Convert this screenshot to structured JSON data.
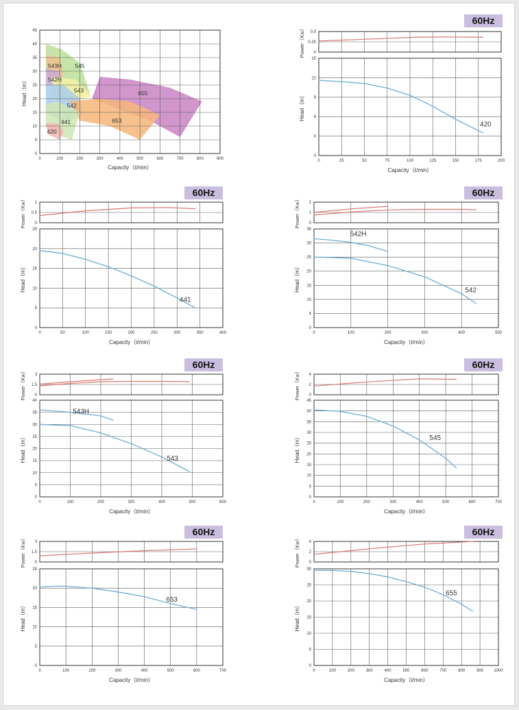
{
  "badges": {
    "b420": "60Hz",
    "b441": "60Hz",
    "b542": "60Hz",
    "b543": "60Hz",
    "b545": "60Hz",
    "b653": "60Hz",
    "b655": "60Hz"
  },
  "colors": {
    "head_curve": "#6aaed6",
    "power_curve": "#d9756e",
    "grid": "#5a5a5a",
    "badge_bg": "#c9bedf"
  },
  "chart_data": [
    {
      "type": "area",
      "id": "overview",
      "xlabel": "Capacity（ℓ/min）",
      "ylabel": "Head（m）",
      "xlim": [
        0,
        900
      ],
      "ylim": [
        0,
        45
      ],
      "xticks": [
        0,
        100,
        200,
        300,
        400,
        500,
        600,
        700,
        800,
        900
      ],
      "yticks": [
        0,
        5,
        10,
        15,
        20,
        25,
        30,
        35,
        40,
        45
      ],
      "grid": true,
      "regions": [
        {
          "name": "545",
          "color": "#bde09a",
          "points": [
            [
              30,
              40
            ],
            [
              110,
              38
            ],
            [
              200,
              33
            ],
            [
              250,
              22
            ],
            [
              160,
              20
            ],
            [
              80,
              25
            ],
            [
              30,
              30
            ]
          ]
        },
        {
          "name": "543H",
          "color": "#f3c193",
          "points": [
            [
              30,
              36
            ],
            [
              100,
              35
            ],
            [
              120,
              28
            ],
            [
              40,
              28
            ]
          ]
        },
        {
          "name": "542H",
          "color": "#c9a9d6",
          "points": [
            [
              30,
              31
            ],
            [
              100,
              30
            ],
            [
              110,
              25
            ],
            [
              30,
              25
            ]
          ]
        },
        {
          "name": "543",
          "color": "#f5f0a6",
          "points": [
            [
              60,
              28
            ],
            [
              180,
              27
            ],
            [
              260,
              21
            ],
            [
              150,
              18
            ],
            [
              70,
              22
            ]
          ]
        },
        {
          "name": "655",
          "color": "#c985c4",
          "points": [
            [
              300,
              28
            ],
            [
              450,
              27
            ],
            [
              650,
              24
            ],
            [
              810,
              19
            ],
            [
              700,
              6
            ],
            [
              550,
              12
            ],
            [
              400,
              16
            ],
            [
              260,
              20
            ]
          ]
        },
        {
          "name": "542",
          "color": "#a9cdea",
          "points": [
            [
              30,
              25
            ],
            [
              120,
              25
            ],
            [
              200,
              20
            ],
            [
              220,
              15
            ],
            [
              130,
              11
            ],
            [
              30,
              15
            ]
          ]
        },
        {
          "name": "653",
          "color": "#f6b679",
          "points": [
            [
              150,
              19
            ],
            [
              300,
              20
            ],
            [
              450,
              19
            ],
            [
              600,
              14
            ],
            [
              500,
              5
            ],
            [
              350,
              10
            ],
            [
              200,
              12
            ]
          ]
        },
        {
          "name": "441",
          "color": "#cfe6b4",
          "points": [
            [
              30,
              18
            ],
            [
              90,
              19
            ],
            [
              200,
              15
            ],
            [
              160,
              5
            ],
            [
              80,
              7
            ],
            [
              30,
              10
            ]
          ]
        },
        {
          "name": "420",
          "color": "#f0b5b5",
          "points": [
            [
              30,
              11
            ],
            [
              90,
              11
            ],
            [
              120,
              8
            ],
            [
              100,
              5
            ],
            [
              40,
              7
            ]
          ]
        }
      ],
      "region_labels": [
        {
          "text": "543H",
          "x": 75,
          "y": 32
        },
        {
          "text": "545",
          "x": 200,
          "y": 32
        },
        {
          "text": "542H",
          "x": 75,
          "y": 27
        },
        {
          "text": "543",
          "x": 195,
          "y": 23
        },
        {
          "text": "655",
          "x": 515,
          "y": 22
        },
        {
          "text": "542",
          "x": 160,
          "y": 17.5
        },
        {
          "text": "441",
          "x": 130,
          "y": 11.5
        },
        {
          "text": "653",
          "x": 385,
          "y": 12
        },
        {
          "text": "420",
          "x": 60,
          "y": 8
        }
      ]
    },
    {
      "type": "line",
      "id": "p420",
      "xlabel": "Capacity（ℓ/min）",
      "power": {
        "ylabel": "Power（Kw）",
        "ylim": [
          0,
          0.5
        ],
        "yticks": [
          0,
          0.25,
          0.5
        ],
        "ytick_labels": [
          "0",
          "0.25",
          "0.5"
        ],
        "series": [
          {
            "x": [
              0,
              60,
              105,
              140,
              180
            ],
            "y": [
              0.27,
              0.32,
              0.36,
              0.37,
              0.36
            ]
          }
        ]
      },
      "head": {
        "ylabel": "Head（m）",
        "ylim": [
          0,
          15
        ],
        "yticks": [
          0,
          3,
          6,
          9,
          12,
          15
        ],
        "xlim": [
          0,
          200
        ],
        "xticks": [
          0,
          25,
          50,
          75,
          100,
          125,
          150,
          175,
          200
        ],
        "series": [
          {
            "name": "420",
            "x": [
              0,
              25,
              50,
              75,
              100,
              125,
              150,
              180
            ],
            "y": [
              11.6,
              11.4,
              11.1,
              10.4,
              9.3,
              7.6,
              5.6,
              3.5
            ]
          }
        ],
        "labels": [
          {
            "text": "420",
            "x": 183,
            "y": 4.5
          }
        ]
      }
    },
    {
      "type": "line",
      "id": "p441",
      "xlabel": "Capacity（ℓ/min）",
      "power": {
        "ylabel": "Power（Kw）",
        "ylim": [
          0,
          1
        ],
        "yticks": [
          0,
          0.5,
          1
        ],
        "ytick_labels": [
          "0",
          "0.5",
          "1"
        ],
        "series": [
          {
            "x": [
              0,
              100,
              200,
              280,
              340
            ],
            "y": [
              0.35,
              0.58,
              0.72,
              0.74,
              0.68
            ]
          }
        ]
      },
      "head": {
        "ylabel": "Head（m）",
        "ylim": [
          0,
          25
        ],
        "yticks": [
          0,
          5,
          10,
          15,
          20,
          25
        ],
        "xlim": [
          0,
          400
        ],
        "xticks": [
          0,
          50,
          100,
          150,
          200,
          250,
          300,
          350,
          400
        ],
        "series": [
          {
            "name": "441",
            "x": [
              0,
              50,
              100,
              150,
              200,
              250,
              300,
              340
            ],
            "y": [
              19.5,
              18.8,
              17.3,
              15.4,
              13.1,
              10.5,
              7.5,
              5.0
            ]
          }
        ],
        "labels": [
          {
            "text": "441",
            "x": 318,
            "y": 6.5
          }
        ]
      }
    },
    {
      "type": "line",
      "id": "p542",
      "xlabel": "Capacity（ℓ/min）",
      "power": {
        "ylabel": "Power（Kw）",
        "ylim": [
          0,
          2
        ],
        "yticks": [
          0,
          1,
          2
        ],
        "ytick_labels": [
          "0",
          "1",
          "2"
        ],
        "series": [
          {
            "x": [
              0,
              100,
              200,
              300,
              400,
              440
            ],
            "y": [
              0.75,
              1.05,
              1.25,
              1.3,
              1.3,
              1.25
            ]
          },
          {
            "x": [
              0,
              100,
              200
            ],
            "y": [
              1.0,
              1.35,
              1.6
            ]
          }
        ]
      },
      "head": {
        "ylabel": "Head（m）",
        "ylim": [
          0,
          35
        ],
        "yticks": [
          0,
          5,
          10,
          15,
          20,
          25,
          30,
          35
        ],
        "xlim": [
          0,
          500
        ],
        "xticks": [
          0,
          100,
          200,
          300,
          400,
          500
        ],
        "series": [
          {
            "name": "542H",
            "x": [
              0,
              50,
              100,
              150,
              200
            ],
            "y": [
              31.5,
              31.0,
              30.2,
              29.0,
              27.0
            ]
          },
          {
            "name": "542",
            "x": [
              0,
              100,
              200,
              300,
              400,
              440
            ],
            "y": [
              25.0,
              24.6,
              22.0,
              18.0,
              12.0,
              8.5
            ]
          }
        ],
        "labels": [
          {
            "text": "542H",
            "x": 120,
            "y": 32.5
          },
          {
            "text": "542",
            "x": 425,
            "y": 12.5
          }
        ]
      }
    },
    {
      "type": "line",
      "id": "p543",
      "xlabel": "Capacity（ℓ/min）",
      "power": {
        "ylabel": "Power（Kw）",
        "ylim": [
          0,
          3
        ],
        "yticks": [
          0,
          1.5,
          3
        ],
        "ytick_labels": [
          "0",
          "1.5",
          "3"
        ],
        "series": [
          {
            "x": [
              0,
              100,
              200,
              300,
              400,
              490
            ],
            "y": [
              1.3,
              1.65,
              1.9,
              1.95,
              1.95,
              1.9
            ]
          },
          {
            "x": [
              0,
              100,
              200,
              240
            ],
            "y": [
              1.55,
              1.9,
              2.2,
              2.3
            ]
          }
        ]
      },
      "head": {
        "ylabel": "Head（m）",
        "ylim": [
          0,
          40
        ],
        "yticks": [
          0,
          5,
          10,
          15,
          20,
          25,
          30,
          35,
          40
        ],
        "xlim": [
          0,
          600
        ],
        "xticks": [
          0,
          100,
          200,
          300,
          400,
          500,
          600
        ],
        "series": [
          {
            "name": "543H",
            "x": [
              0,
              100,
              200,
              240
            ],
            "y": [
              36.0,
              35.0,
              33.5,
              31.8
            ]
          },
          {
            "name": "543",
            "x": [
              0,
              100,
              200,
              300,
              400,
              490
            ],
            "y": [
              30.0,
              29.5,
              26.5,
              22.0,
              16.5,
              10.5
            ]
          }
        ],
        "labels": [
          {
            "text": "543H",
            "x": 135,
            "y": 34.5
          },
          {
            "text": "543",
            "x": 435,
            "y": 15.0
          }
        ]
      }
    },
    {
      "type": "line",
      "id": "p545",
      "xlabel": "Capacity（ℓ/min）",
      "power": {
        "ylabel": "Power（Kw）",
        "ylim": [
          0,
          4
        ],
        "yticks": [
          0,
          2,
          4
        ],
        "ytick_labels": [
          "0",
          "2",
          "4"
        ],
        "series": [
          {
            "x": [
              0,
              200,
              400,
              540
            ],
            "y": [
              1.7,
              2.5,
              3.1,
              3.0
            ]
          }
        ]
      },
      "head": {
        "ylabel": "Head（m）",
        "ylim": [
          0,
          45
        ],
        "yticks": [
          0,
          5,
          10,
          15,
          20,
          25,
          30,
          35,
          40,
          45
        ],
        "xlim": [
          0,
          700
        ],
        "xticks": [
          0,
          100,
          200,
          300,
          400,
          500,
          600,
          700
        ],
        "series": [
          {
            "name": "545",
            "x": [
              0,
              100,
              200,
              300,
              400,
              500,
              540
            ],
            "y": [
              40.5,
              39.8,
              37.5,
              33.0,
              26.5,
              18.0,
              13.5
            ]
          }
        ],
        "labels": [
          {
            "text": "545",
            "x": 460,
            "y": 26.5
          }
        ]
      }
    },
    {
      "type": "line",
      "id": "p653",
      "xlabel": "Capacity（ℓ/min）",
      "power": {
        "ylabel": "Power（Kw）",
        "ylim": [
          0,
          3
        ],
        "yticks": [
          0,
          1.5,
          3
        ],
        "ytick_labels": [
          "0",
          "1.5",
          "3"
        ],
        "series": [
          {
            "x": [
              0,
              200,
              400,
              600
            ],
            "y": [
              0.9,
              1.3,
              1.65,
              1.9
            ]
          }
        ]
      },
      "head": {
        "ylabel": "Head（m）",
        "ylim": [
          0,
          25
        ],
        "yticks": [
          0,
          5,
          10,
          15,
          20,
          25
        ],
        "xlim": [
          0,
          700
        ],
        "xticks": [
          0,
          100,
          200,
          300,
          400,
          500,
          600,
          700
        ],
        "series": [
          {
            "name": "653",
            "x": [
              0,
              50,
              100,
              200,
              300,
              400,
              500,
              600
            ],
            "y": [
              20.3,
              20.5,
              20.5,
              20.0,
              19.0,
              17.8,
              16.0,
              14.5
            ]
          }
        ],
        "labels": [
          {
            "text": "653",
            "x": 505,
            "y": 16.5
          }
        ]
      }
    },
    {
      "type": "line",
      "id": "p655",
      "xlabel": "Capacity（ℓ/min）",
      "power": {
        "ylabel": "Power（Kw）",
        "ylim": [
          0,
          4
        ],
        "yticks": [
          0,
          2,
          4
        ],
        "ytick_labels": [
          "0",
          "2",
          "4"
        ],
        "series": [
          {
            "x": [
              0,
              200,
              400,
              600,
              860
            ],
            "y": [
              1.5,
              2.2,
              2.9,
              3.5,
              4.0
            ]
          }
        ]
      },
      "head": {
        "ylabel": "Head（m）",
        "ylim": [
          0,
          30
        ],
        "yticks": [
          0,
          5,
          10,
          15,
          20,
          25,
          30
        ],
        "xlim": [
          0,
          1000
        ],
        "xticks": [
          0,
          100,
          200,
          300,
          400,
          500,
          600,
          700,
          800,
          900,
          1000
        ],
        "series": [
          {
            "name": "655",
            "x": [
              0,
              100,
              200,
              300,
              400,
              500,
              600,
              700,
              800,
              860
            ],
            "y": [
              29.5,
              29.5,
              29.2,
              28.5,
              27.5,
              26.0,
              24.3,
              22.0,
              19.0,
              16.8
            ]
          }
        ],
        "labels": [
          {
            "text": "655",
            "x": 745,
            "y": 21.8
          }
        ]
      }
    }
  ]
}
